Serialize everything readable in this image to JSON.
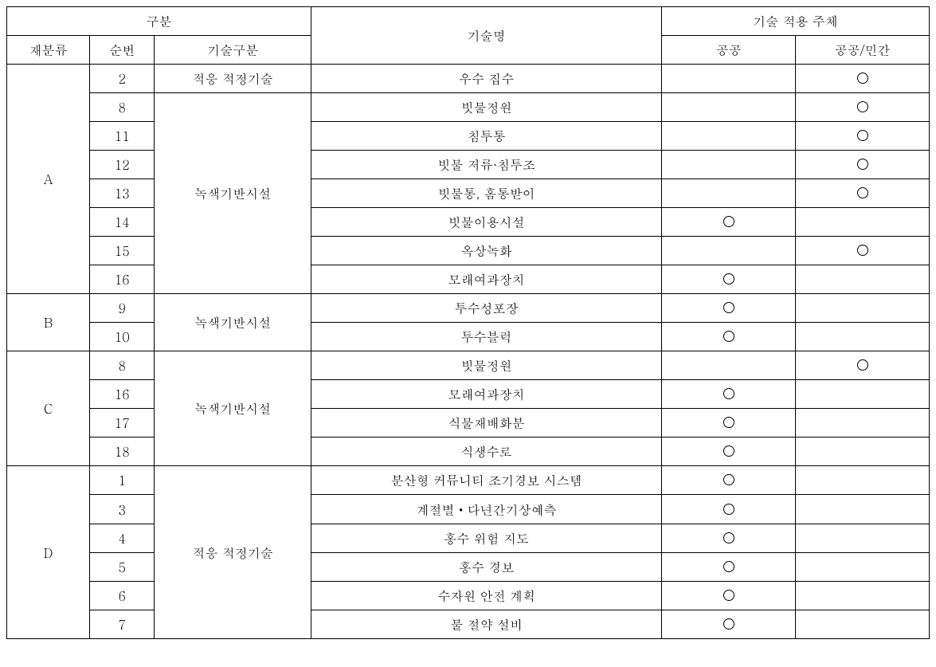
{
  "headers": {
    "category_group": "구분",
    "category": "재분류",
    "num": "순번",
    "tech_category": "기술구분",
    "tech_name": "기술명",
    "agent_group": "기술 적용 주체",
    "public": "공공",
    "public_private": "공공/민간"
  },
  "groups": [
    {
      "category": "A",
      "subgroups": [
        {
          "tech_category": "적응 적정기술",
          "rows": [
            {
              "num": "2",
              "tech_name": "우수 집수",
              "public": false,
              "mixed": true
            }
          ]
        },
        {
          "tech_category": "녹색기반시설",
          "rows": [
            {
              "num": "8",
              "tech_name": "빗물정원",
              "public": false,
              "mixed": true
            },
            {
              "num": "11",
              "tech_name": "침투통",
              "public": false,
              "mixed": true
            },
            {
              "num": "12",
              "tech_name": "빗물 저류·침투조",
              "public": false,
              "mixed": true
            },
            {
              "num": "13",
              "tech_name": "빗물통, 홈통받이",
              "public": false,
              "mixed": true
            },
            {
              "num": "14",
              "tech_name": "빗물이용시설",
              "public": true,
              "mixed": false
            },
            {
              "num": "15",
              "tech_name": "옥상녹화",
              "public": false,
              "mixed": true
            },
            {
              "num": "16",
              "tech_name": "모래여과장치",
              "public": true,
              "mixed": false
            }
          ]
        }
      ]
    },
    {
      "category": "B",
      "subgroups": [
        {
          "tech_category": "녹색기반시설",
          "rows": [
            {
              "num": "9",
              "tech_name": "투수성포장",
              "public": true,
              "mixed": false
            },
            {
              "num": "10",
              "tech_name": "투수블럭",
              "public": true,
              "mixed": false
            }
          ]
        }
      ]
    },
    {
      "category": "C",
      "subgroups": [
        {
          "tech_category": "녹색기반시설",
          "rows": [
            {
              "num": "8",
              "tech_name": "빗물정원",
              "public": false,
              "mixed": true
            },
            {
              "num": "16",
              "tech_name": "모래여과장치",
              "public": true,
              "mixed": false
            },
            {
              "num": "17",
              "tech_name": "식물재배화분",
              "public": true,
              "mixed": false
            },
            {
              "num": "18",
              "tech_name": "식생수로",
              "public": true,
              "mixed": false
            }
          ]
        }
      ]
    },
    {
      "category": "D",
      "subgroups": [
        {
          "tech_category": "적응 적정기술",
          "rows": [
            {
              "num": "1",
              "tech_name": "분산형 커뮤니티 조기경보 시스템",
              "public": true,
              "mixed": false
            },
            {
              "num": "3",
              "tech_name": "계절별・다년간기상예측",
              "public": true,
              "mixed": false
            },
            {
              "num": "4",
              "tech_name": "홍수 위험 지도",
              "public": true,
              "mixed": false
            },
            {
              "num": "5",
              "tech_name": "홍수 경보",
              "public": true,
              "mixed": false
            },
            {
              "num": "6",
              "tech_name": "수자원 안전 계획",
              "public": true,
              "mixed": false
            },
            {
              "num": "7",
              "tech_name": "물 절약 설비",
              "public": true,
              "mixed": false
            }
          ]
        }
      ]
    }
  ]
}
